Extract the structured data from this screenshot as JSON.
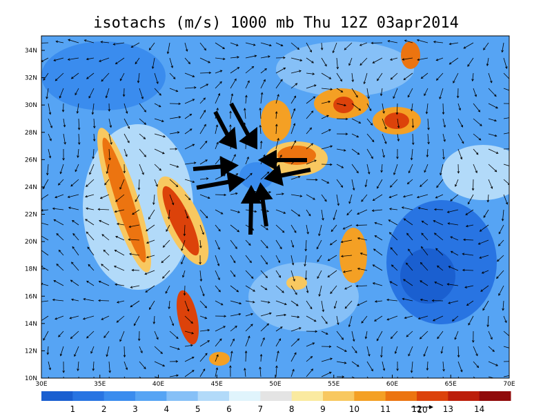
{
  "title": "isotachs (m/s) 1000 mb Thu 12Z 03apr2014",
  "lat_labels": [
    "34N",
    "32N",
    "30N",
    "28N",
    "26N",
    "24N",
    "22N",
    "20N",
    "18N",
    "16N",
    "14N",
    "12N",
    "10N"
  ],
  "lon_labels": [
    "30E",
    "35E",
    "40E",
    "45E",
    "50E",
    "55E",
    "60E",
    "65E",
    "70E"
  ],
  "colorbar": {
    "labels": [
      1,
      2,
      3,
      4,
      5,
      6,
      7,
      8,
      9,
      10,
      11,
      12,
      13,
      14
    ],
    "colors": [
      "#1a5fd0",
      "#2874e2",
      "#3a8cee",
      "#56a4f4",
      "#86c0f7",
      "#b2daf9",
      "#e0f4fc",
      "#e4e4e4",
      "#faeaa0",
      "#f8c860",
      "#f4a024",
      "#ec7410",
      "#dc420a",
      "#bc1e0a",
      "#900a0a"
    ]
  },
  "vector_reference": "10"
}
